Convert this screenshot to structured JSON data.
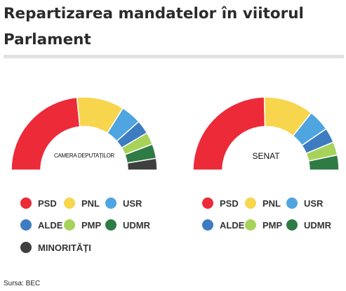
{
  "title": "Repartizarea mandatelor în viitorul Parlament",
  "source": "Sursa: BEC",
  "chart_data": [
    {
      "type": "pie",
      "style": "semicircle-donut",
      "center_label": "CAMERA DEPUTAȚILOR",
      "categories": [
        "PSD",
        "PNL",
        "USR",
        "ALDE",
        "PMP",
        "UDMR",
        "MINORITĂȚI"
      ],
      "values": [
        154,
        69,
        30,
        20,
        18,
        21,
        17
      ]
    },
    {
      "type": "pie",
      "style": "semicircle-donut",
      "center_label": "SENAT",
      "categories": [
        "PSD",
        "PNL",
        "USR",
        "ALDE",
        "PMP",
        "UDMR"
      ],
      "values": [
        67,
        30,
        13,
        9,
        8,
        9
      ]
    }
  ],
  "legend": [
    {
      "label": "PSD",
      "color": "#ec2a38"
    },
    {
      "label": "PNL",
      "color": "#f7d64e"
    },
    {
      "label": "USR",
      "color": "#4ea5e0"
    },
    {
      "label": "ALDE",
      "color": "#3d7cc0"
    },
    {
      "label": "PMP",
      "color": "#a7d35a"
    },
    {
      "label": "UDMR",
      "color": "#2f7b45"
    },
    {
      "label": "MINORITĂȚI",
      "color": "#3f3f3f"
    }
  ]
}
